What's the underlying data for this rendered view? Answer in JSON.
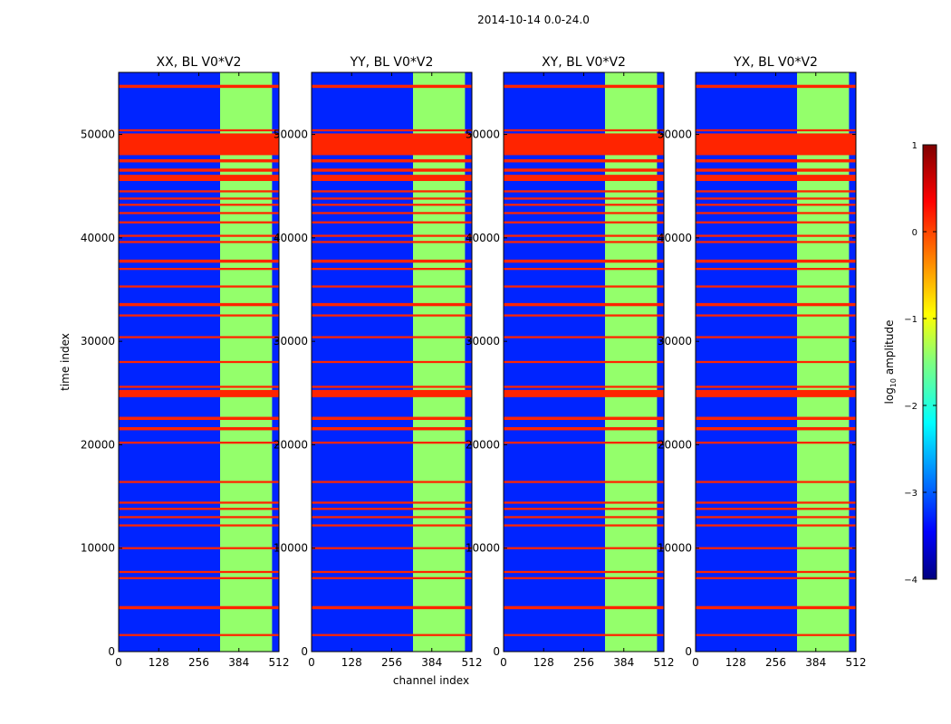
{
  "chart_data": {
    "type": "heatmap",
    "suptitle": "2014-10-14 0.0-24.0",
    "xlabel": "channel index",
    "ylabel": "time index",
    "xlim": [
      0,
      512
    ],
    "ylim": [
      0,
      56000
    ],
    "xticks": [
      0,
      128,
      256,
      384,
      512
    ],
    "yticks": [
      0,
      10000,
      20000,
      30000,
      40000,
      50000
    ],
    "colorbar": {
      "label": "log10 amplitude",
      "ticks": [
        1,
        0,
        -1,
        -2,
        -3,
        -4
      ],
      "tick_labels": [
        "1",
        "0",
        "−1",
        "−2",
        "−3",
        "−4"
      ],
      "range": [
        -4,
        1
      ],
      "colormap": "jet"
    },
    "panels": [
      {
        "title": "XX, BL V0*V2"
      },
      {
        "title": "YY, BL V0*V2"
      },
      {
        "title": "XY, BL V0*V2"
      },
      {
        "title": "YX, BL V0*V2"
      }
    ],
    "background_level": -3.2,
    "band_channels": [
      324,
      490
    ],
    "band_level": -1.4,
    "flagged_rows": [
      [
        1500,
        1700
      ],
      [
        4100,
        4400
      ],
      [
        7000,
        7200
      ],
      [
        7600,
        7800
      ],
      [
        9900,
        10100
      ],
      [
        12100,
        12300
      ],
      [
        12900,
        13100
      ],
      [
        13700,
        13900
      ],
      [
        14300,
        14500
      ],
      [
        16300,
        16500
      ],
      [
        20100,
        20300
      ],
      [
        21400,
        21700
      ],
      [
        22400,
        22700
      ],
      [
        24600,
        25300
      ],
      [
        25500,
        25700
      ],
      [
        27900,
        28100
      ],
      [
        30300,
        30500
      ],
      [
        32400,
        32600
      ],
      [
        33400,
        33700
      ],
      [
        35200,
        35400
      ],
      [
        36900,
        37100
      ],
      [
        37600,
        37900
      ],
      [
        39500,
        39700
      ],
      [
        40100,
        40300
      ],
      [
        41400,
        41600
      ],
      [
        42300,
        42500
      ],
      [
        43100,
        43300
      ],
      [
        43700,
        43900
      ],
      [
        44400,
        44600
      ],
      [
        45500,
        46100
      ],
      [
        46400,
        46700
      ],
      [
        47300,
        47600
      ],
      [
        48000,
        50100
      ],
      [
        50300,
        50500
      ],
      [
        54500,
        54800
      ]
    ]
  }
}
